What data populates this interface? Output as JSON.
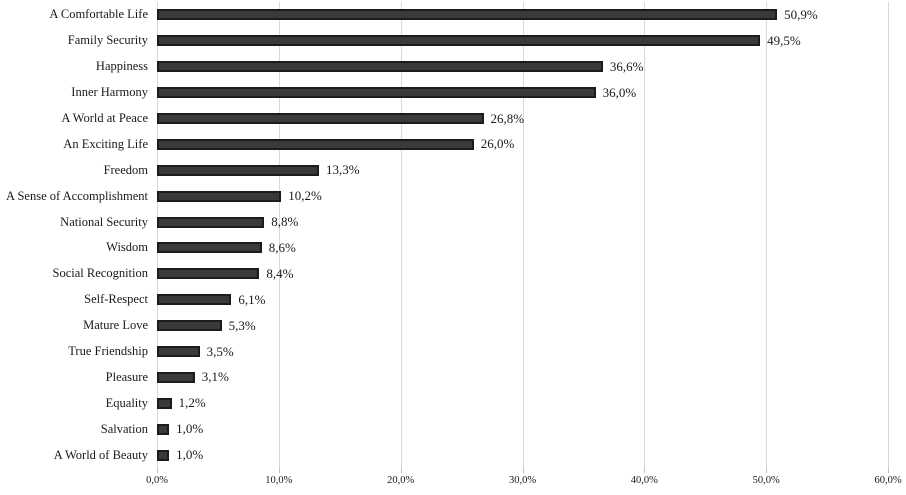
{
  "chart_data": {
    "type": "bar",
    "orientation": "horizontal",
    "title": "",
    "xlabel": "",
    "ylabel": "",
    "xlim": [
      0,
      60
    ],
    "grid": "vertical",
    "legend": "none",
    "categories": [
      "A Comfortable Life",
      "Family Security",
      "Happiness",
      "Inner Harmony",
      "A World at Peace",
      "An Exciting Life",
      "Freedom",
      "A Sense of Accomplishment",
      "National Security",
      "Wisdom",
      "Social Recognition",
      "Self-Respect",
      "Mature Love",
      "True Friendship",
      "Pleasure",
      "Equality",
      "Salvation",
      "A World of Beauty"
    ],
    "values": [
      50.9,
      49.5,
      36.6,
      36.0,
      26.8,
      26.0,
      13.3,
      10.2,
      8.8,
      8.6,
      8.4,
      6.1,
      5.3,
      3.5,
      3.1,
      1.2,
      1.0,
      1.0
    ],
    "value_labels": [
      "50,9%",
      "49,5%",
      "36,6%",
      "36,0%",
      "26,8%",
      "26,0%",
      "13,3%",
      "10,2%",
      "8,8%",
      "8,6%",
      "8,4%",
      "6,1%",
      "5,3%",
      "3,5%",
      "3,1%",
      "1,2%",
      "1,0%",
      "1,0%"
    ],
    "x_tick_values": [
      0,
      10,
      20,
      30,
      40,
      50,
      60
    ],
    "x_tick_labels": [
      "0,0%",
      "10,0%",
      "20,0%",
      "30,0%",
      "40,0%",
      "50,0%",
      "60,0%"
    ],
    "colors": {
      "bar_fill": "#3a3a3a",
      "bar_border": "#1c1c1c",
      "gridline": "#d9d9d9",
      "tick": "#bfbfbf",
      "text": "#1a1a1a",
      "background": "#ffffff"
    }
  }
}
